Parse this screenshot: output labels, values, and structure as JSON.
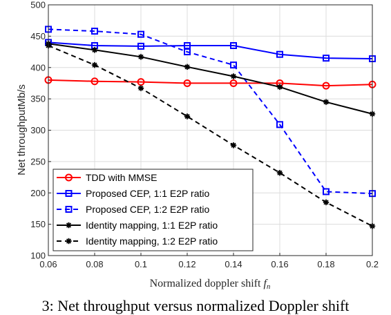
{
  "chart_data": {
    "type": "line",
    "title": "",
    "xlabel": "Normalized doppler shift",
    "xlabel_symbol": "f",
    "xlabel_subscript": "n",
    "ylabel": "Net throughputMb/s",
    "xlim": [
      0.06,
      0.2
    ],
    "ylim": [
      100,
      500
    ],
    "x_ticks": [
      "0.06",
      "0.08",
      "0.1",
      "0.12",
      "0.14",
      "0.16",
      "0.18",
      "0.2"
    ],
    "y_ticks": [
      "100",
      "150",
      "200",
      "250",
      "300",
      "350",
      "400",
      "450",
      "500"
    ],
    "x": [
      0.06,
      0.08,
      0.1,
      0.12,
      0.14,
      0.16,
      0.18,
      0.2
    ],
    "grid": true,
    "legend_position": "bottom-left",
    "series": [
      {
        "name": "TDD with MMSE",
        "color": "#ff0000",
        "dash": "solid",
        "marker": "circle",
        "values": [
          380,
          378,
          377,
          375,
          375,
          375,
          371,
          373
        ]
      },
      {
        "name": "Proposed CEP, 1:1 E2P ratio",
        "color": "#0000ff",
        "dash": "solid",
        "marker": "square",
        "values": [
          440,
          435,
          434,
          435,
          435,
          421,
          415,
          414
        ]
      },
      {
        "name": "Proposed CEP, 1:2 E2P ratio",
        "color": "#0000ff",
        "dash": "dashed",
        "marker": "square",
        "values": [
          461,
          458,
          453,
          425,
          404,
          309,
          202,
          199
        ]
      },
      {
        "name": "Identity mapping, 1:1 E2P ratio",
        "color": "#000000",
        "dash": "solid",
        "marker": "star",
        "values": [
          438,
          428,
          417,
          401,
          386,
          369,
          345,
          326
        ]
      },
      {
        "name": "Identity mapping, 1:2 E2P ratio",
        "color": "#000000",
        "dash": "dashed",
        "marker": "star",
        "values": [
          435,
          404,
          367,
          322,
          276,
          232,
          185,
          147
        ]
      }
    ]
  },
  "caption": "3: Net throughput versus normalized Doppler shift"
}
